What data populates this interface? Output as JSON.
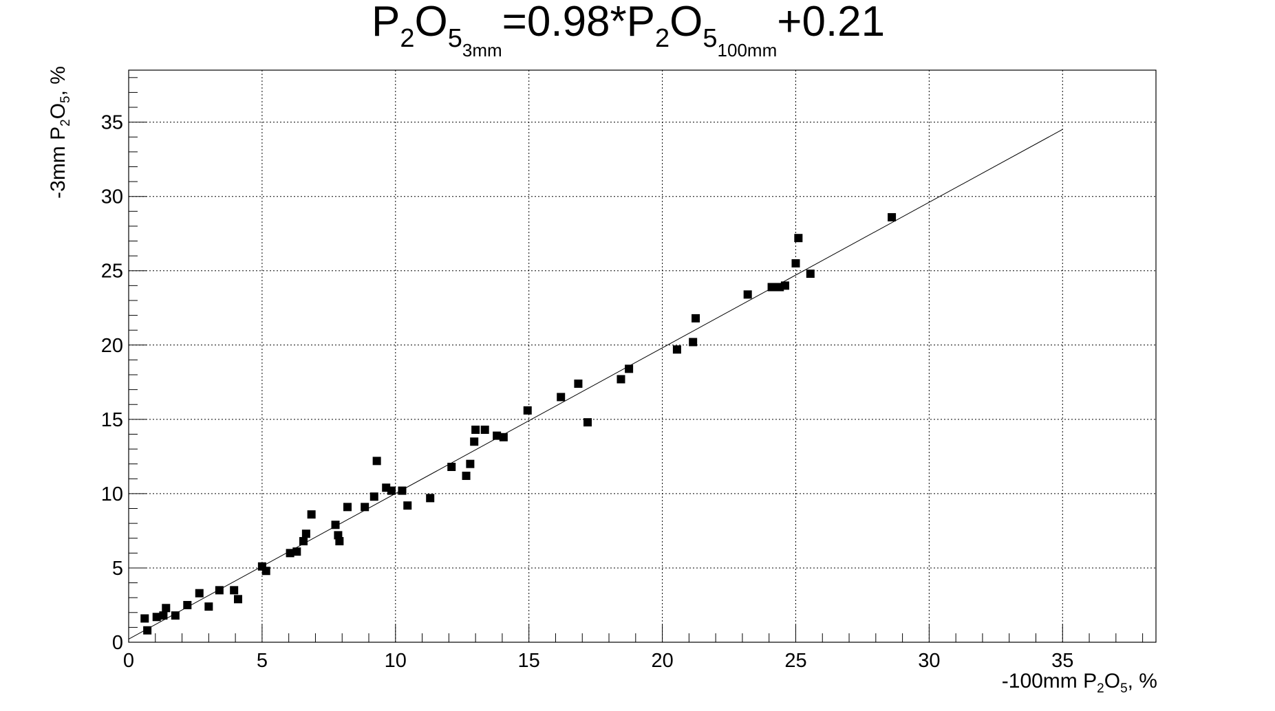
{
  "title": {
    "lhs_base": "P",
    "lhs_sub_1": "2",
    "lhs_o": "O",
    "lhs_sub_2": "5",
    "lhs_sub_3": "3mm",
    "equals": "=0.98*",
    "rhs_base": "P",
    "rhs_sub_1": "2",
    "rhs_o": "O",
    "rhs_sub_2": "5",
    "rhs_sub_3": "100mm",
    "tail": "+0.21"
  },
  "xaxis": {
    "label_pre": "-100mm P",
    "label_sub1": "2",
    "label_mid": "O",
    "label_sub2": "5",
    "label_post": ", %"
  },
  "yaxis": {
    "label_pre": "-3mm P",
    "label_sub1": "2",
    "label_mid": "O",
    "label_sub2": "5",
    "label_post": ", %"
  },
  "chart_data": {
    "type": "scatter",
    "xlim": [
      0,
      38.5
    ],
    "ylim": [
      0,
      38.5
    ],
    "x_ticks": [
      0,
      5,
      10,
      15,
      20,
      25,
      30,
      35
    ],
    "y_ticks": [
      0,
      5,
      10,
      15,
      20,
      25,
      30,
      35
    ],
    "x_tick_labels": [
      "0",
      "5",
      "10",
      "15",
      "20",
      "25",
      "30",
      "35"
    ],
    "y_tick_labels": [
      "0",
      "5",
      "10",
      "15",
      "20",
      "25",
      "30",
      "35"
    ],
    "grid": true,
    "marker": "square",
    "marker_color": "#000000",
    "fit_line": {
      "slope": 0.98,
      "intercept": 0.21,
      "x_range": [
        0,
        35
      ]
    },
    "points": [
      [
        0.6,
        1.6
      ],
      [
        0.7,
        0.8
      ],
      [
        1.05,
        1.7
      ],
      [
        1.3,
        1.8
      ],
      [
        1.4,
        2.3
      ],
      [
        1.75,
        1.8
      ],
      [
        2.2,
        2.5
      ],
      [
        2.65,
        3.3
      ],
      [
        3.0,
        2.4
      ],
      [
        3.4,
        3.5
      ],
      [
        3.95,
        3.5
      ],
      [
        4.1,
        2.9
      ],
      [
        5.0,
        5.1
      ],
      [
        5.15,
        4.8
      ],
      [
        6.05,
        6.0
      ],
      [
        6.3,
        6.1
      ],
      [
        6.55,
        6.8
      ],
      [
        6.65,
        7.3
      ],
      [
        6.85,
        8.6
      ],
      [
        7.75,
        7.9
      ],
      [
        7.85,
        7.2
      ],
      [
        7.9,
        6.8
      ],
      [
        8.2,
        9.1
      ],
      [
        8.85,
        9.1
      ],
      [
        9.2,
        9.8
      ],
      [
        9.3,
        12.2
      ],
      [
        9.65,
        10.4
      ],
      [
        9.85,
        10.2
      ],
      [
        10.25,
        10.2
      ],
      [
        10.45,
        9.2
      ],
      [
        11.3,
        9.7
      ],
      [
        12.1,
        11.8
      ],
      [
        12.65,
        11.2
      ],
      [
        12.8,
        12.0
      ],
      [
        12.95,
        13.5
      ],
      [
        13.0,
        14.3
      ],
      [
        13.35,
        14.3
      ],
      [
        13.8,
        13.9
      ],
      [
        14.05,
        13.8
      ],
      [
        14.95,
        15.6
      ],
      [
        16.2,
        16.5
      ],
      [
        16.85,
        17.4
      ],
      [
        17.2,
        14.8
      ],
      [
        18.45,
        17.7
      ],
      [
        18.75,
        18.4
      ],
      [
        20.55,
        19.7
      ],
      [
        21.15,
        20.2
      ],
      [
        21.25,
        21.8
      ],
      [
        23.2,
        23.4
      ],
      [
        24.1,
        23.9
      ],
      [
        24.4,
        23.9
      ],
      [
        24.6,
        24.0
      ],
      [
        25.0,
        25.5
      ],
      [
        25.1,
        27.2
      ],
      [
        25.55,
        24.8
      ],
      [
        28.6,
        28.6
      ]
    ]
  }
}
